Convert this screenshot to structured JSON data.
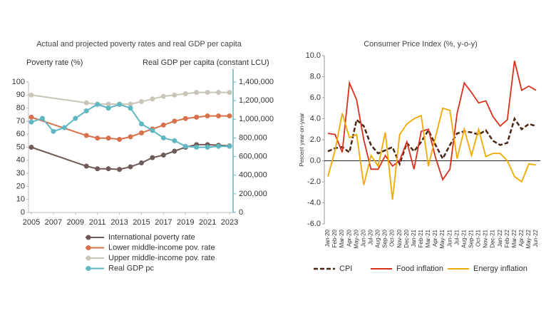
{
  "chart_data": [
    {
      "type": "line",
      "title": "Actual and projected poverty rates and real GDP per capita",
      "ylabel": "Poverty rate (%)",
      "y2label": "Real GDP per capita (constant LCU)",
      "xlim": [
        2005,
        2023
      ],
      "xticks": [
        2005,
        2007,
        2009,
        2011,
        2013,
        2015,
        2017,
        2019,
        2021,
        2023
      ],
      "ylim": [
        0,
        100
      ],
      "yticks": [
        0,
        10,
        20,
        30,
        40,
        50,
        60,
        70,
        80,
        90,
        100
      ],
      "y2lim": [
        0,
        1400000
      ],
      "y2ticks": [
        0,
        {
          "value": 200000,
          "label": "200,000"
        },
        {
          "value": 400000,
          "label": "400,000"
        },
        {
          "value": 600000,
          "label": "600,000"
        },
        {
          "value": 800000,
          "label": "800,000"
        },
        {
          "value": 1000000,
          "label": "1,000,000"
        },
        {
          "value": 1200000,
          "label": "1,200,000"
        },
        {
          "value": 1400000,
          "label": "1,400,000"
        }
      ],
      "series": [
        {
          "name": "International poverty rate",
          "color": "#6e5a57",
          "x": [
            2005,
            2010,
            2011,
            2012,
            2013,
            2014,
            2015,
            2016,
            2017,
            2018,
            2019,
            2020,
            2021,
            2022,
            2023
          ],
          "values": [
            50,
            35.5,
            33.5,
            33.5,
            33,
            35,
            38,
            42,
            44,
            47,
            50,
            52,
            52,
            51.5,
            51
          ]
        },
        {
          "name": "Lower middle-income pov. rate",
          "color": "#d8704a",
          "x": [
            2005,
            2010,
            2011,
            2012,
            2013,
            2014,
            2015,
            2016,
            2017,
            2018,
            2019,
            2020,
            2021,
            2022,
            2023
          ],
          "values": [
            73,
            59,
            57,
            57,
            56,
            58,
            61,
            64,
            67,
            70,
            72,
            73,
            74,
            74,
            74
          ]
        },
        {
          "name": "Upper middle-income pov. rate",
          "color": "#c9c5b9",
          "x": [
            2005,
            2010,
            2011,
            2012,
            2013,
            2014,
            2015,
            2016,
            2017,
            2018,
            2019,
            2020,
            2021,
            2022,
            2023
          ],
          "values": [
            90,
            84,
            83,
            83,
            83,
            83,
            85,
            87,
            89,
            90,
            91,
            92,
            92,
            92,
            92
          ]
        },
        {
          "name": "Real GDP pc",
          "color": "#5fb7c2",
          "axis": "y2",
          "x": [
            2005,
            2006,
            2007,
            2008,
            2009,
            2010,
            2011,
            2012,
            2013,
            2014,
            2015,
            2016,
            2017,
            2018,
            2019,
            2020,
            2021,
            2022,
            2023
          ],
          "values": [
            970000,
            1010000,
            870000,
            910000,
            1010000,
            1090000,
            1160000,
            1120000,
            1160000,
            1120000,
            950000,
            880000,
            800000,
            770000,
            710000,
            700000,
            700000,
            710000,
            710000
          ]
        }
      ]
    },
    {
      "type": "line",
      "title": "Consumer Price Index (%, y-o-y)",
      "ylabel": "Percent year-on-year",
      "categories": [
        "Jan-20",
        "Feb-20",
        "Mar-20",
        "Apr-20",
        "May-20",
        "Jun-20",
        "Jul-20",
        "Aug-20",
        "Sep-20",
        "Oct-20",
        "Nov-20",
        "Dec-20",
        "Jan-21",
        "Feb-21",
        "Mar-21",
        "Apr-21",
        "May-21",
        "Jun-21",
        "Jul-21",
        "Aug-21",
        "Sep-21",
        "Oct-21",
        "Nov-21",
        "Dec-21",
        "Jan-22",
        "Feb-22",
        "Mar-22",
        "Apr-22",
        "May-22",
        "Jun-22"
      ],
      "ylim": [
        -6,
        10
      ],
      "yticks": [
        {
          "value": -6,
          "label": "-6.0"
        },
        {
          "value": -4,
          "label": "-4.0"
        },
        {
          "value": -2,
          "label": "-2.0"
        },
        {
          "value": 0,
          "label": "0.0"
        },
        {
          "value": 2,
          "label": "2.0"
        },
        {
          "value": 4,
          "label": "4.0"
        },
        {
          "value": 6,
          "label": "6.0"
        },
        {
          "value": 8,
          "label": "8.0"
        },
        {
          "value": 10,
          "label": "10.0"
        }
      ],
      "series": [
        {
          "name": "CPI",
          "color": "#4a2511",
          "dashed": true,
          "values": [
            0.9,
            1.2,
            1.3,
            0.8,
            3.9,
            3.3,
            1.5,
            0.7,
            1.0,
            1.3,
            -0.3,
            1.7,
            0.9,
            1.8,
            2.9,
            1.5,
            0.2,
            1.5,
            2.6,
            2.8,
            2.7,
            2.5,
            2.9,
            1.9,
            1.5,
            1.7,
            4.0,
            3.0,
            3.5,
            3.3
          ]
        },
        {
          "name": "Food inflation",
          "color": "#d9301c",
          "values": [
            2.6,
            2.5,
            0.8,
            7.4,
            5.8,
            2.0,
            -0.8,
            -0.8,
            0.5,
            -0.5,
            0.0,
            1.8,
            -0.8,
            2.8,
            3.0,
            0.3,
            -1.8,
            -0.8,
            4.5,
            7.4,
            6.5,
            5.5,
            5.7,
            4.2,
            3.3,
            3.9,
            9.5,
            6.7,
            7.1,
            6.7
          ]
        },
        {
          "name": "Energy inflation",
          "color": "#f2a900",
          "values": [
            -1.5,
            1.0,
            4.5,
            2.2,
            2.5,
            -2.3,
            0.5,
            -0.5,
            2.7,
            -3.7,
            2.5,
            3.5,
            4.0,
            4.3,
            -0.5,
            2.3,
            5.0,
            4.8,
            0.2,
            3.0,
            0.5,
            3.0,
            0.4,
            0.7,
            0.7,
            0.0,
            -1.5,
            -2.0,
            -0.3,
            -0.4
          ]
        }
      ]
    }
  ]
}
